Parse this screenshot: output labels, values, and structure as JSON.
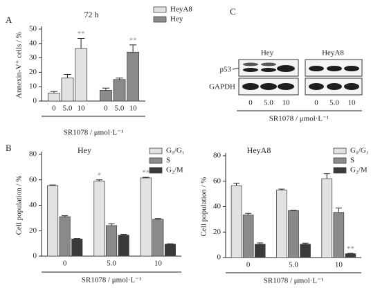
{
  "chart_data": [
    {
      "type": "bar",
      "panel": "A",
      "title": "72 h",
      "ylabel": "Annexin-V⁺ cells / %",
      "xlabel": "SR1078 / μmol·L⁻¹",
      "categories": [
        "0",
        "5.0",
        "10"
      ],
      "ylim": [
        0,
        50
      ],
      "yticks": [
        0,
        10,
        20,
        30,
        40,
        50
      ],
      "series": [
        {
          "name": "HeyA8",
          "color": "#e2e2e2",
          "values": [
            5.5,
            16,
            36.5
          ],
          "errors": [
            1.2,
            2.5,
            7
          ],
          "annotations": [
            null,
            null,
            "**"
          ]
        },
        {
          "name": "Hey",
          "color": "#8a8a8a",
          "values": [
            7.5,
            15,
            34
          ],
          "errors": [
            1.5,
            1,
            5
          ],
          "annotations": [
            null,
            null,
            "**"
          ]
        }
      ]
    },
    {
      "type": "bar",
      "panel": "B",
      "title": "Hey",
      "ylabel": "Cell population / %",
      "xlabel": "SR1078 / μmol·L⁻¹",
      "categories": [
        "0",
        "5.0",
        "10"
      ],
      "ylim": [
        0,
        80
      ],
      "yticks": [
        0,
        20,
        40,
        60,
        80
      ],
      "series": [
        {
          "name": "G₀/G₁",
          "color": "#e2e2e2",
          "values": [
            55.5,
            59,
            61.5
          ],
          "errors": [
            0.5,
            1,
            0.5
          ],
          "annotations": [
            null,
            "*",
            "**"
          ]
        },
        {
          "name": "S",
          "color": "#8a8a8a",
          "values": [
            31,
            24,
            29
          ],
          "errors": [
            0.8,
            1.5,
            0.5
          ],
          "annotations": [
            null,
            null,
            null
          ]
        },
        {
          "name": "G₂/M",
          "color": "#3a3a3a",
          "values": [
            13.5,
            16.5,
            9.5
          ],
          "errors": [
            0.3,
            0.6,
            0.2
          ],
          "annotations": [
            null,
            null,
            null
          ]
        }
      ]
    },
    {
      "type": "bar",
      "title": "HeyA8",
      "ylabel": "Cell population / %",
      "xlabel": "SR1078 / μmol·L⁻¹",
      "categories": [
        "0",
        "5.0",
        "10"
      ],
      "ylim": [
        0,
        80
      ],
      "yticks": [
        0,
        20,
        40,
        60,
        80
      ],
      "series": [
        {
          "name": "G₀/G₁",
          "color": "#e2e2e2",
          "values": [
            56.5,
            53,
            62
          ],
          "errors": [
            2,
            0.8,
            4
          ],
          "annotations": [
            null,
            null,
            null
          ]
        },
        {
          "name": "S",
          "color": "#8a8a8a",
          "values": [
            33.5,
            37,
            35.5
          ],
          "errors": [
            1.2,
            0.3,
            3.5
          ],
          "annotations": [
            null,
            null,
            null
          ]
        },
        {
          "name": "G₂/M",
          "color": "#3a3a3a",
          "values": [
            10.5,
            10.5,
            3
          ],
          "errors": [
            1,
            0.8,
            0.3
          ],
          "annotations": [
            null,
            null,
            "**"
          ]
        }
      ]
    }
  ],
  "blot": {
    "panel": "C",
    "groups": [
      "Hey",
      "HeyA8"
    ],
    "rows": [
      "p53",
      "GAPDH"
    ],
    "lanes": [
      "0",
      "5.0",
      "10",
      "0",
      "5.0",
      "10"
    ],
    "xlabel": "SR1078 / μmol·L⁻¹"
  }
}
